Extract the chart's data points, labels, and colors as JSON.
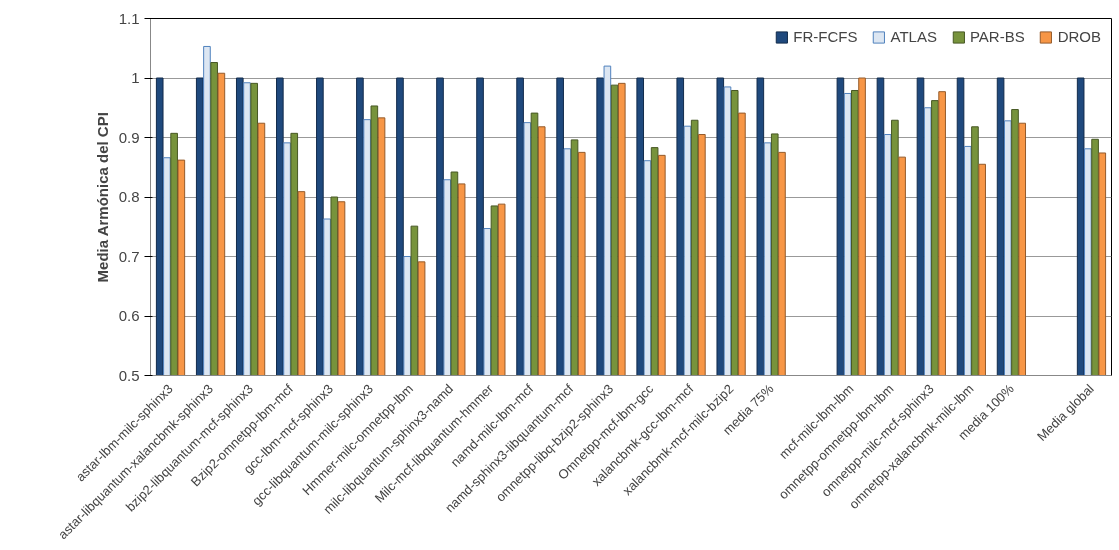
{
  "chart_data": {
    "type": "bar",
    "ylabel": "Media Armónica del CPI",
    "categories": [
      "astar-lbm-milc-sphinx3",
      "astar-libquantum-xalancbmk-sphinx3",
      "bzip2-libquantum-mcf-sphinx3",
      "Bzip2-omnetpp-lbm-mcf",
      "gcc-lbm-mcf-sphinx3",
      "gcc-libquantum-milc-sphinx3",
      "Hmmer-milc-omnetpp-lbm",
      "milc-libquantum-sphinx3-namd",
      "Milc-mcf-libquantum-hmmer",
      "namd-milc-lbm-mcf",
      "namd-sphinx3-libquantum-mcf",
      "omnetpp-libq-bzip2-sphinx3",
      "Omnetpp-mcf-lbm-gcc",
      "xalancbmk-gcc-lbm-mcf",
      "xalancbmk-mcf-milc-bzip2",
      "media 75%",
      null,
      "mcf-milc-lbm-lbm",
      "omnetpp-omnetpp-lbm-lbm",
      "omnetpp-milc-mcf-sphinx3",
      "omnetpp-xalancbmk-milc-lbm",
      "media 100%",
      null,
      "Media global"
    ],
    "series": [
      {
        "name": "FR-FCFS",
        "color": "#1f497d",
        "values": [
          1,
          1,
          1,
          1,
          1,
          1,
          1,
          1,
          1,
          1,
          1,
          1,
          1,
          1,
          1,
          1,
          null,
          1,
          1,
          1,
          1,
          1,
          null,
          1
        ]
      },
      {
        "name": "ATLAS",
        "color": "#dce6f2",
        "values": [
          0.866,
          1.053,
          0.992,
          0.891,
          0.763,
          0.93,
          0.7,
          0.829,
          0.747,
          0.925,
          0.881,
          1.02,
          0.861,
          0.919,
          0.985,
          0.891,
          null,
          0.974,
          0.905,
          0.95,
          0.885,
          0.928,
          null,
          0.881
        ]
      },
      {
        "name": "PAR-BS",
        "color": "#77933c",
        "values": [
          0.907,
          1.026,
          0.991,
          0.907,
          0.8,
          0.953,
          0.751,
          0.842,
          0.785,
          0.941,
          0.896,
          0.988,
          0.883,
          0.929,
          0.979,
          0.906,
          null,
          0.979,
          0.929,
          0.962,
          0.918,
          0.947,
          null,
          0.897
        ]
      },
      {
        "name": "DROB",
        "color": "#f79646",
        "values": [
          0.862,
          1.008,
          0.924,
          0.809,
          0.792,
          0.933,
          0.691,
          0.822,
          0.788,
          0.918,
          0.875,
          0.991,
          0.87,
          0.905,
          0.941,
          0.875,
          null,
          1.0,
          0.867,
          0.977,
          0.855,
          0.924,
          null,
          0.874
        ]
      }
    ],
    "ylim": [
      0.5,
      1.1
    ],
    "yticks": [
      0.5,
      0.6,
      0.7,
      0.8,
      0.9,
      1,
      1.1
    ],
    "grid": "y",
    "legend": "top right"
  }
}
